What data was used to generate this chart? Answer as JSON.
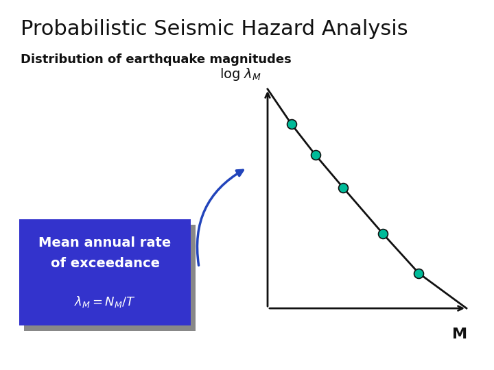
{
  "title": "Probabilistic Seismic Hazard Analysis",
  "subtitle": "Distribution of earthquake magnitudes",
  "background_color": "#ffffff",
  "title_fontsize": 22,
  "subtitle_fontsize": 13,
  "line_points_x": [
    0.0,
    0.12,
    0.24,
    0.38,
    0.58,
    0.76,
    1.0
  ],
  "line_points_y": [
    1.0,
    0.84,
    0.7,
    0.55,
    0.34,
    0.16,
    0.0
  ],
  "dot_indices": [
    1,
    2,
    3,
    4,
    5
  ],
  "dot_color": "#00BB99",
  "dot_edge_color": "#111111",
  "dot_size": 100,
  "line_color": "#111111",
  "line_width": 2.0,
  "axis_color": "#111111",
  "xlabel_text": "M",
  "box_facecolor": "#3333CC",
  "box_shadow_color": "#888888",
  "box_text_color": "#ffffff",
  "box_line1": "Mean annual rate",
  "box_line2": "of exceedance",
  "box_formula": "$\\lambda_M = N_M / T$",
  "arrow_color": "#2244BB",
  "ylabel_label": "log $\\lambda_M$"
}
